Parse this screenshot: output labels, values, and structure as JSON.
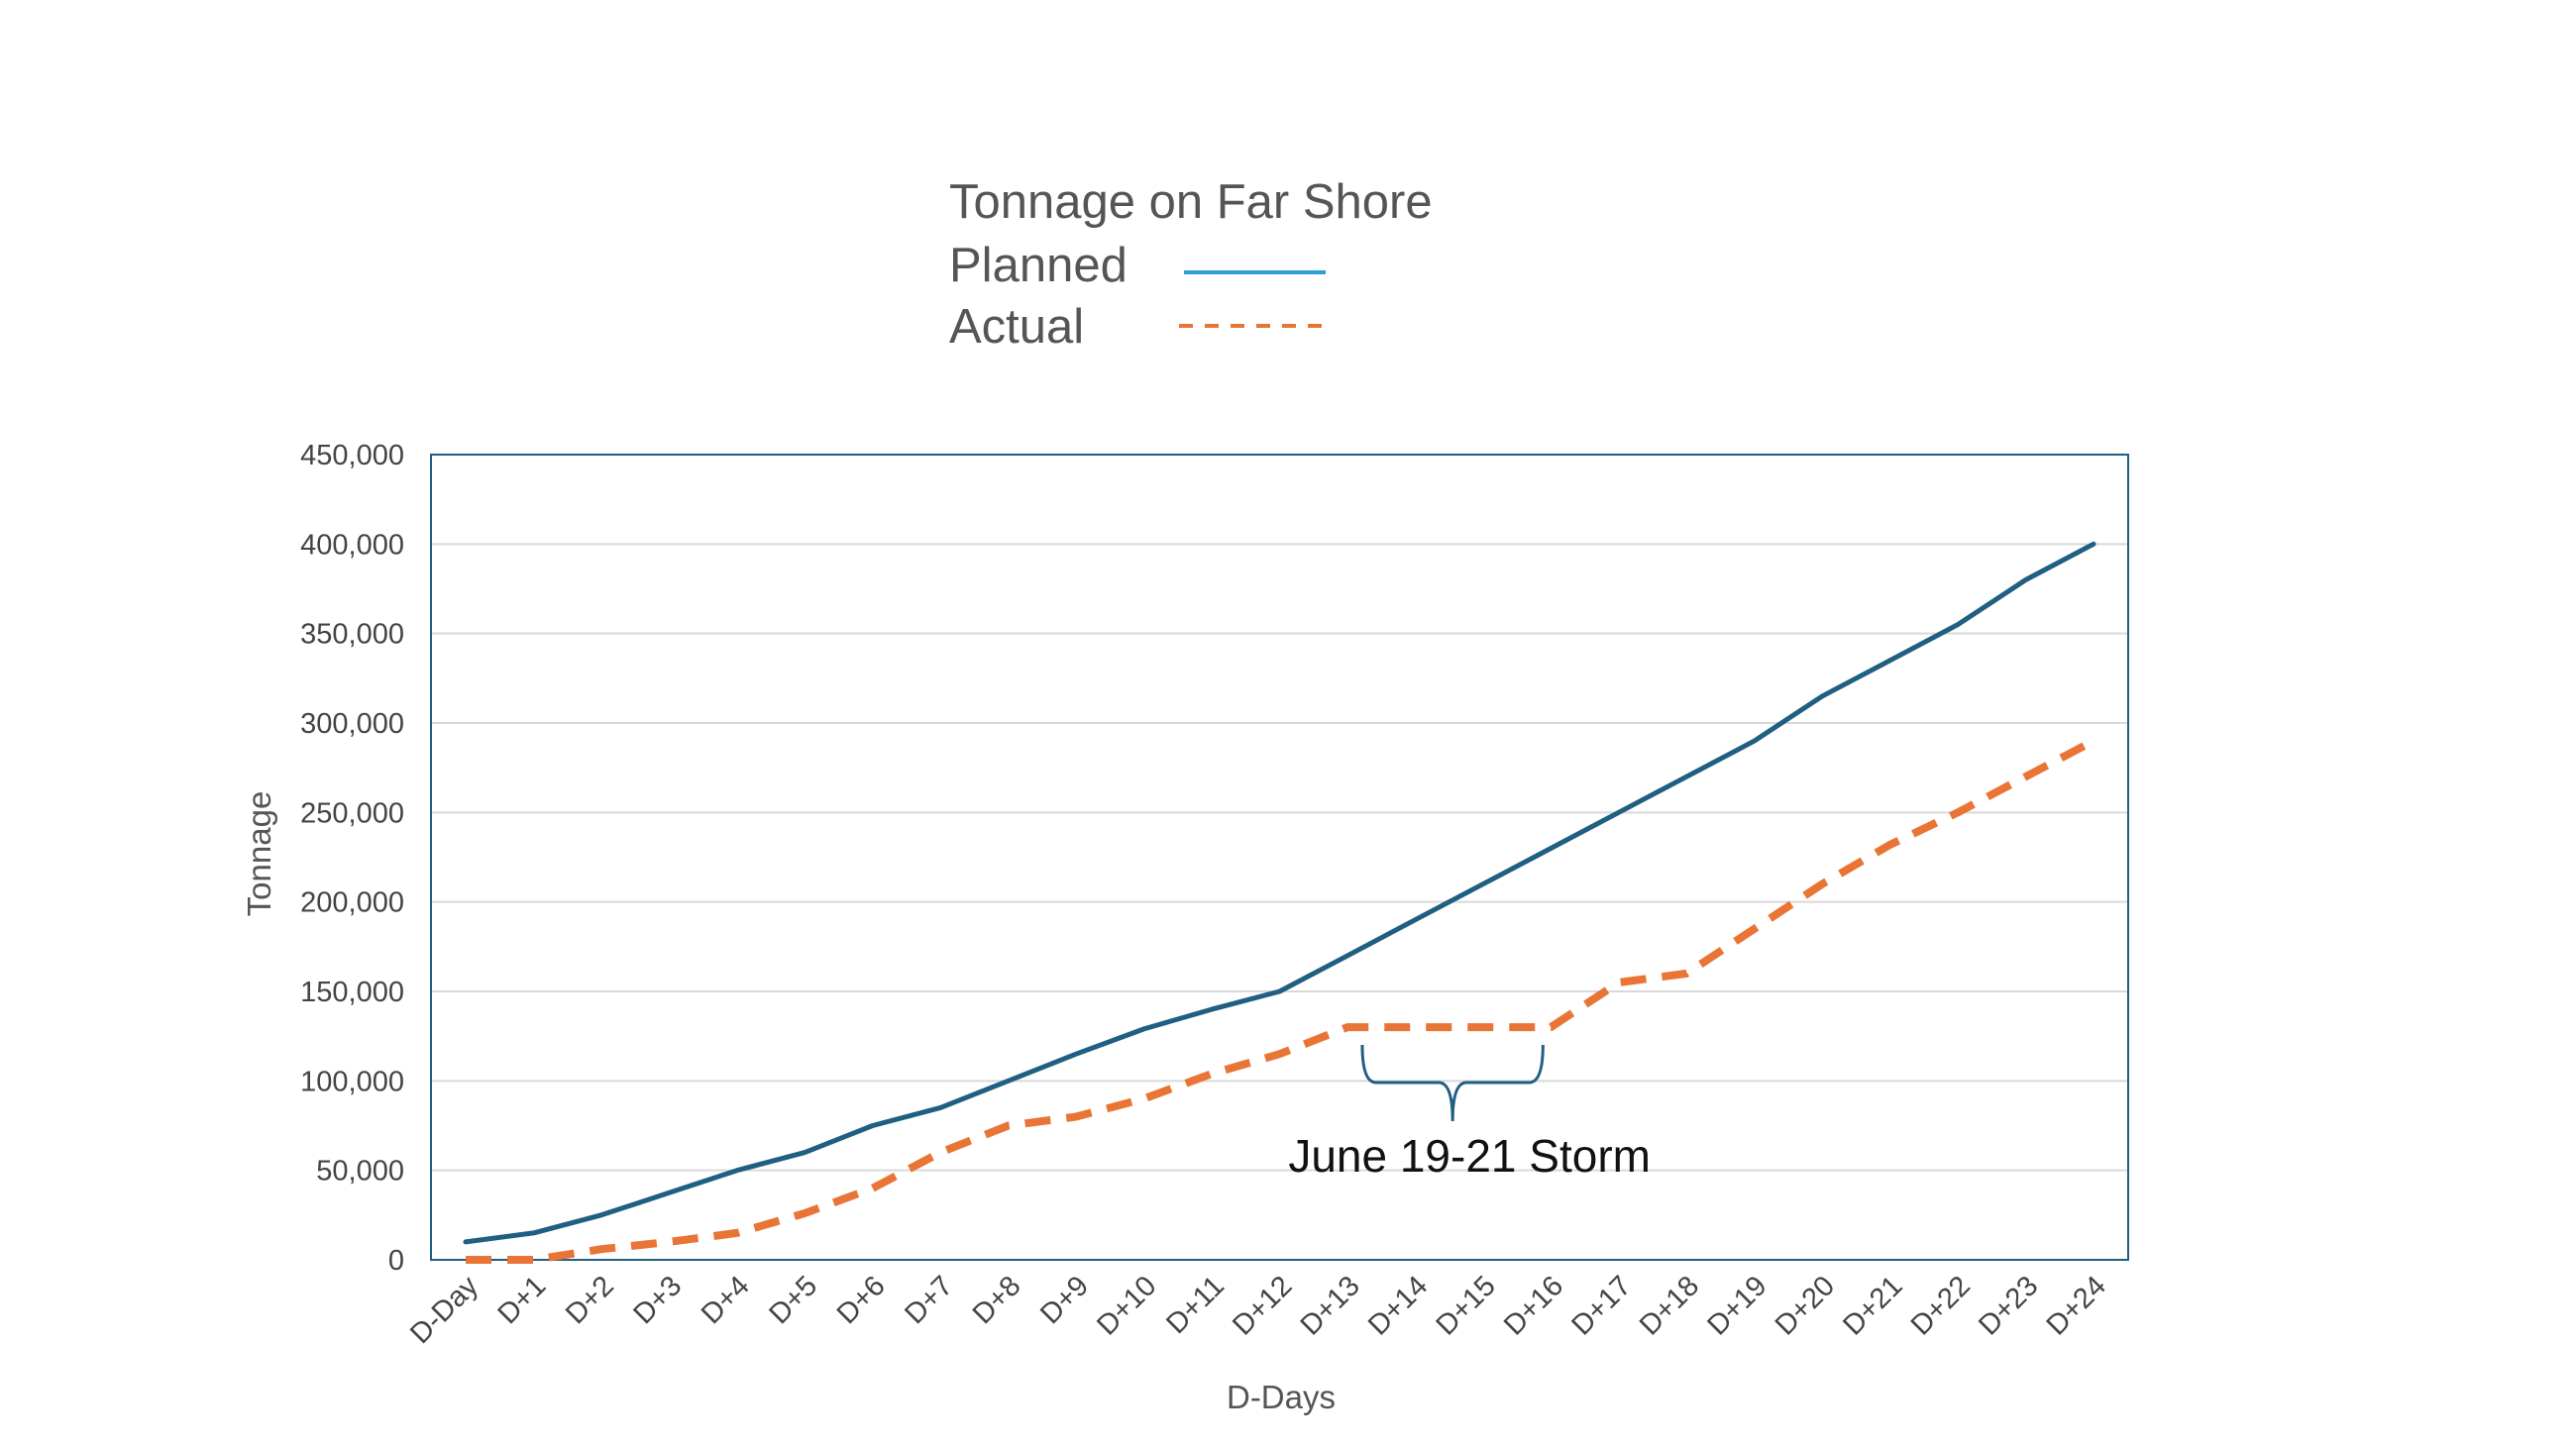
{
  "chart_data": {
    "type": "line",
    "title": "Tonnage on Far Shore",
    "xlabel": "D-Days",
    "ylabel": "Tonnage",
    "ylim": [
      0,
      450000
    ],
    "yticks": [
      "0",
      "50,000",
      "100,000",
      "150,000",
      "200,000",
      "250,000",
      "300,000",
      "350,000",
      "400,000",
      "450,000"
    ],
    "categories": [
      "D-Day",
      "D+1",
      "D+2",
      "D+3",
      "D+4",
      "D+5",
      "D+6",
      "D+7",
      "D+8",
      "D+9",
      "D+10",
      "D+11",
      "D+12",
      "D+13",
      "D+14",
      "D+15",
      "D+16",
      "D+17",
      "D+18",
      "D+19",
      "D+20",
      "D+21",
      "D+22",
      "D+23",
      "D+24"
    ],
    "grid": true,
    "legend_position": "top",
    "series": [
      {
        "name": "Planned",
        "style": "solid",
        "color": "#1f5f82",
        "legend_color": "#2a9fd6",
        "values": [
          10000,
          15000,
          25000,
          37500,
          50000,
          60000,
          75000,
          85000,
          100000,
          115000,
          129000,
          140000,
          150000,
          170000,
          190000,
          210000,
          230000,
          250000,
          270000,
          290000,
          315000,
          335000,
          355000,
          380000,
          400000
        ]
      },
      {
        "name": "Actual",
        "style": "dashed",
        "color": "#e87536",
        "legend_color": "#e87536",
        "values": [
          0,
          0,
          6000,
          10000,
          15000,
          26000,
          40000,
          60000,
          75000,
          80000,
          90000,
          104000,
          115000,
          130000,
          130000,
          130000,
          130000,
          155000,
          160000,
          185000,
          210000,
          232000,
          250000,
          270000,
          290000
        ]
      }
    ],
    "annotations": [
      {
        "text": "June 19-21 Storm",
        "brace_from": "D+13",
        "brace_to": "D+16"
      }
    ]
  }
}
